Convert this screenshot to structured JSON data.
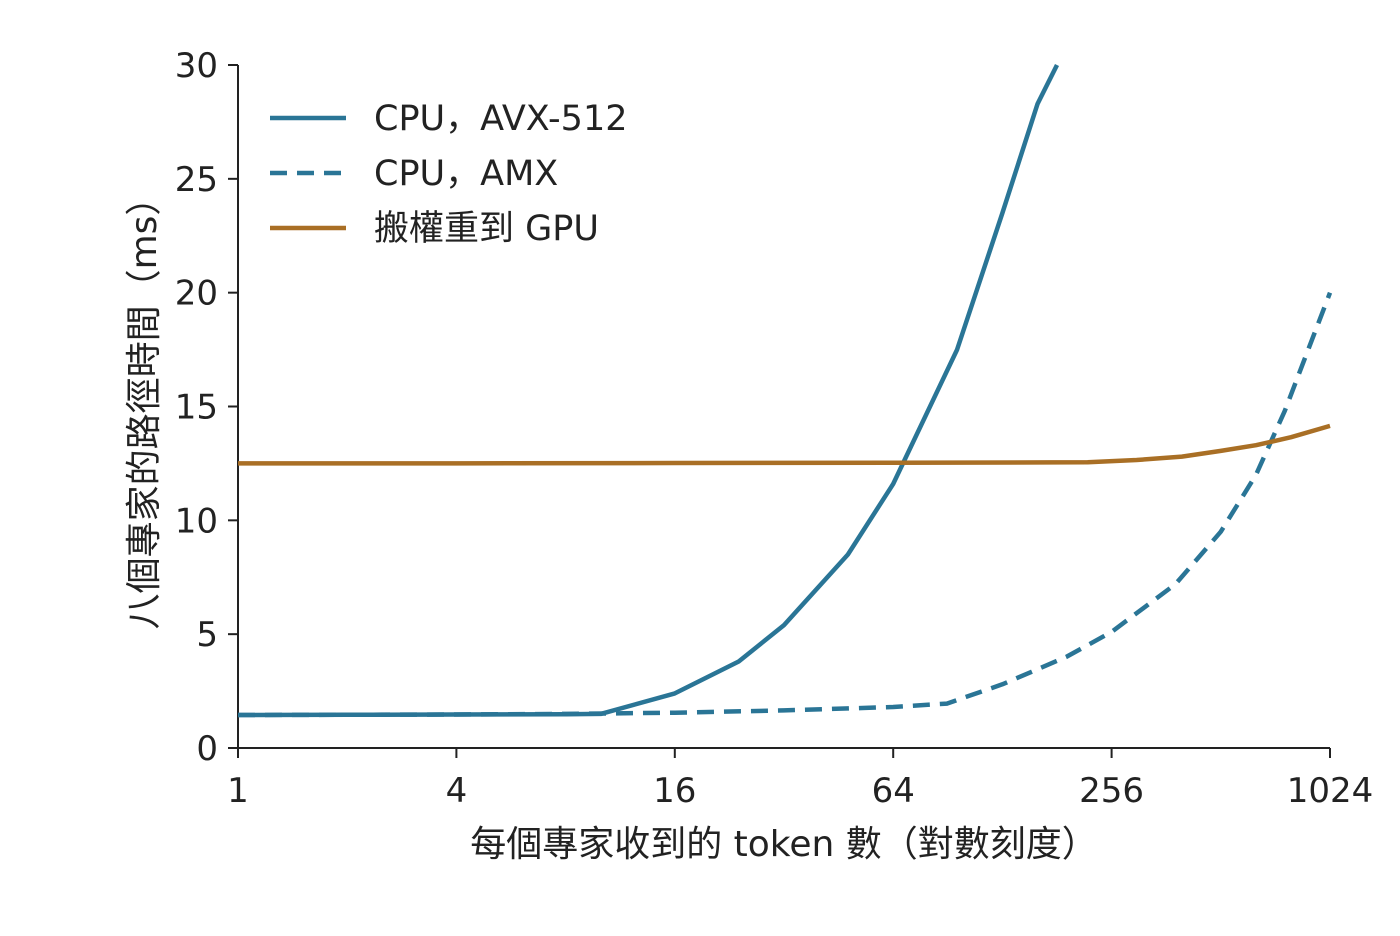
{
  "chart_data": {
    "type": "line",
    "xlabel": "每個專家收到的 token 數（對數刻度）",
    "ylabel": "八個專家的路徑時間（ms）",
    "x_scale": "log2",
    "xlim": [
      1,
      1024
    ],
    "ylim": [
      0,
      30
    ],
    "x_ticks": [
      1,
      4,
      16,
      64,
      256,
      1024
    ],
    "y_ticks": [
      0,
      5,
      10,
      15,
      20,
      25,
      30
    ],
    "grid": false,
    "legend_position": "top-left",
    "series": [
      {
        "name": "CPU，AVX-512",
        "color": "#2a7596",
        "dash": "solid",
        "x": [
          1,
          2,
          4,
          8,
          10,
          16,
          24,
          32,
          48,
          64,
          96,
          128,
          160,
          181
        ],
        "y": [
          1.45,
          1.46,
          1.47,
          1.48,
          1.5,
          2.4,
          3.8,
          5.4,
          8.5,
          11.6,
          17.5,
          23.5,
          28.3,
          30
        ]
      },
      {
        "name": "CPU，AMX",
        "color": "#2a7596",
        "dash": "dashed",
        "x": [
          1,
          4,
          8,
          16,
          32,
          64,
          90,
          128,
          192,
          256,
          384,
          512,
          640,
          768,
          1024
        ],
        "y": [
          1.45,
          1.47,
          1.5,
          1.55,
          1.65,
          1.8,
          1.95,
          2.8,
          4.0,
          5.1,
          7.2,
          9.5,
          12.0,
          14.8,
          20.0
        ]
      },
      {
        "name": "搬權重到 GPU",
        "color": "#a96f25",
        "dash": "solid",
        "x": [
          1,
          4,
          16,
          64,
          220,
          300,
          400,
          512,
          640,
          800,
          1024
        ],
        "y": [
          12.5,
          12.5,
          12.52,
          12.53,
          12.55,
          12.65,
          12.8,
          13.05,
          13.3,
          13.65,
          14.15
        ]
      }
    ]
  }
}
